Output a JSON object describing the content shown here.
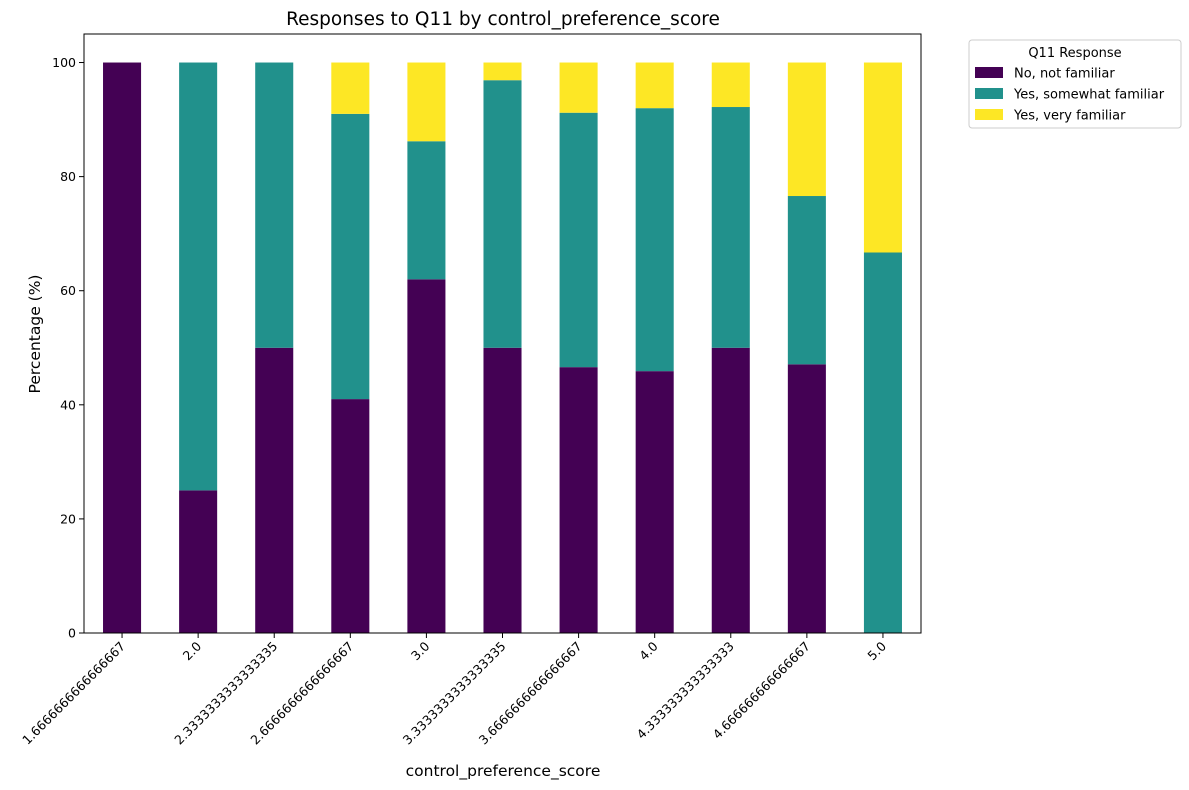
{
  "chart_data": {
    "type": "bar",
    "stacked": true,
    "title": "Responses to Q11 by control_preference_score",
    "xlabel": "control_preference_score",
    "ylabel": "Percentage (%)",
    "ylim": [
      0,
      105
    ],
    "yticks": [
      0,
      20,
      40,
      60,
      80,
      100
    ],
    "grid": false,
    "legend_title": "Q11 Response",
    "legend_position": "outside-top-right",
    "categories": [
      "1.6666666666666667",
      "2.0",
      "2.3333333333333335",
      "2.6666666666666667",
      "3.0",
      "3.3333333333333335",
      "3.6666666666666667",
      "4.0",
      "4.333333333333333",
      "4.666666666666667",
      "5.0"
    ],
    "series": [
      {
        "name": "No, not familiar",
        "color": "#440154",
        "values": [
          100,
          25,
          50,
          41,
          62,
          50,
          46.6,
          45.9,
          50,
          47.1,
          0
        ]
      },
      {
        "name": "Yes, somewhat familiar",
        "color": "#21918c",
        "values": [
          0,
          75,
          50,
          50,
          24.2,
          46.9,
          44.6,
          46.1,
          42.2,
          29.5,
          66.7
        ]
      },
      {
        "name": "Yes, very familiar",
        "color": "#fde725",
        "values": [
          0,
          0,
          0,
          9,
          13.8,
          3.1,
          8.8,
          8,
          7.8,
          23.4,
          33.3
        ]
      }
    ]
  }
}
